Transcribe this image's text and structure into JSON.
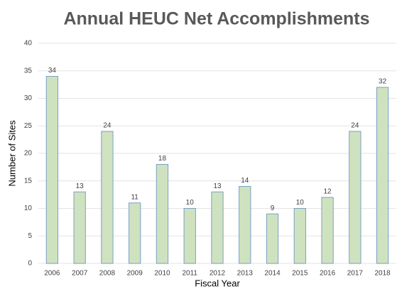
{
  "chart_data": {
    "type": "bar",
    "title": "Annual HEUC Net Accomplishments",
    "x_label": "Fiscal Year",
    "y_label": "Number of Sites",
    "categories": [
      "2006",
      "2007",
      "2008",
      "2009",
      "2010",
      "2011",
      "2012",
      "2013",
      "2014",
      "2015",
      "2016",
      "2017",
      "2018"
    ],
    "values": [
      34,
      13,
      24,
      11,
      18,
      10,
      13,
      14,
      9,
      10,
      12,
      24,
      32
    ],
    "color": "#cfe2bf",
    "edge_color": "#7a9fc6",
    "ylim": [
      0,
      40
    ],
    "yticks": [
      0,
      5,
      10,
      15,
      20,
      25,
      30,
      35,
      40
    ],
    "grid": true
  }
}
